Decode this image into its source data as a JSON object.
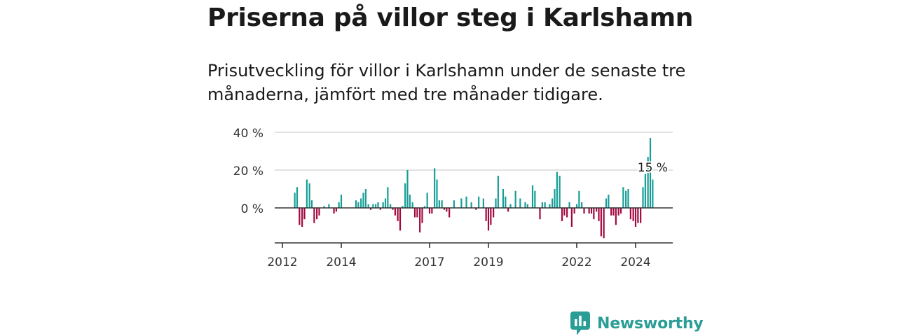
{
  "headline": "Priserna på villor steg i Karlshamn",
  "subhead": "Prisutveckling för villor i Karlshamn under de senaste tre månaderna, jämfört med tre månader tidigare.",
  "brand": {
    "name": "Newsworthy"
  },
  "colors": {
    "positive": "#159e96",
    "negative": "#a3073f",
    "grid": "#d9d9d9",
    "axis": "#333333"
  },
  "chart_data": {
    "type": "bar",
    "title": "",
    "xlabel": "",
    "ylabel": "",
    "ylim": [
      -16,
      40
    ],
    "y_ticks": [
      {
        "value": 0,
        "label": "0 %"
      },
      {
        "value": 20,
        "label": "20 %"
      },
      {
        "value": 40,
        "label": "40 %"
      }
    ],
    "x_ticks": [
      {
        "value": 2012.0,
        "label": "2012"
      },
      {
        "value": 2014.0,
        "label": "2014"
      },
      {
        "value": 2017.0,
        "label": "2017"
      },
      {
        "value": 2019.0,
        "label": "2019"
      },
      {
        "value": 2022.0,
        "label": "2022"
      },
      {
        "value": 2024.0,
        "label": "2024"
      }
    ],
    "annotation": {
      "label": "15 %",
      "value": 15
    },
    "grid": true,
    "bar_width_years": 0.052,
    "x": [
      2012.42,
      2012.5,
      2012.58,
      2012.67,
      2012.75,
      2012.83,
      2012.92,
      2013.0,
      2013.08,
      2013.17,
      2013.25,
      2013.42,
      2013.58,
      2013.75,
      2013.83,
      2013.92,
      2014.0,
      2014.5,
      2014.58,
      2014.67,
      2014.75,
      2014.83,
      2014.92,
      2015.0,
      2015.08,
      2015.17,
      2015.25,
      2015.33,
      2015.42,
      2015.5,
      2015.58,
      2015.67,
      2015.75,
      2015.83,
      2015.92,
      2016.0,
      2016.08,
      2016.17,
      2016.25,
      2016.33,
      2016.42,
      2016.5,
      2016.58,
      2016.67,
      2016.75,
      2016.83,
      2016.92,
      2017.0,
      2017.08,
      2017.17,
      2017.25,
      2017.33,
      2017.42,
      2017.5,
      2017.58,
      2017.67,
      2017.83,
      2018.08,
      2018.25,
      2018.42,
      2018.58,
      2018.67,
      2018.83,
      2018.92,
      2019.0,
      2019.08,
      2019.17,
      2019.25,
      2019.33,
      2019.5,
      2019.58,
      2019.67,
      2019.75,
      2019.92,
      2020.08,
      2020.25,
      2020.33,
      2020.5,
      2020.58,
      2020.75,
      2020.83,
      2020.92,
      2021.08,
      2021.17,
      2021.25,
      2021.33,
      2021.42,
      2021.5,
      2021.58,
      2021.67,
      2021.75,
      2021.83,
      2021.92,
      2022.0,
      2022.08,
      2022.17,
      2022.25,
      2022.42,
      2022.5,
      2022.58,
      2022.67,
      2022.75,
      2022.83,
      2022.92,
      2023.0,
      2023.08,
      2023.17,
      2023.25,
      2023.33,
      2023.42,
      2023.5,
      2023.58,
      2023.67,
      2023.75,
      2023.83,
      2023.92,
      2024.0,
      2024.08,
      2024.17,
      2024.25,
      2024.33,
      2024.42,
      2024.5,
      2024.58
    ],
    "values": [
      8,
      11,
      -9,
      -10,
      -6,
      15,
      13,
      4,
      -8,
      -6,
      -4,
      1,
      2,
      -3,
      -2,
      3,
      7,
      4,
      3,
      5,
      8,
      10,
      2,
      -1,
      2,
      2,
      3,
      -1,
      3,
      5,
      11,
      2,
      -1,
      -4,
      -7,
      -12,
      1,
      13,
      20,
      7,
      3,
      -5,
      -5,
      -13,
      -8,
      1,
      8,
      -3,
      -3,
      21,
      15,
      4,
      4,
      -1,
      -2,
      -5,
      4,
      5,
      6,
      3,
      -1,
      6,
      5,
      -7,
      -12,
      -9,
      -5,
      5,
      17,
      10,
      6,
      -2,
      2,
      9,
      5,
      3,
      2,
      12,
      9,
      -6,
      3,
      3,
      2,
      5,
      10,
      19,
      17,
      -7,
      -4,
      -5,
      3,
      -10,
      -3,
      2,
      9,
      3,
      -3,
      -3,
      -3,
      -6,
      -2,
      -7,
      -15,
      -16,
      5,
      7,
      -4,
      -4,
      -9,
      -4,
      -3,
      11,
      9,
      10,
      -6,
      -7,
      -10,
      -8,
      -8,
      11,
      18,
      27,
      37,
      15
    ]
  }
}
